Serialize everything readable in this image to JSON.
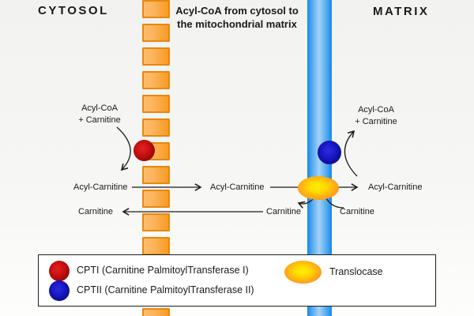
{
  "header": {
    "cytosol_title": "CYTOSOL",
    "matrix_title": "MATRIX",
    "caption_line1": "Acyl-CoA from cytosol to",
    "caption_line2": "the mitochondrial matrix"
  },
  "cytosol_side": {
    "substrates_line1": "Acyl-CoA",
    "substrates_line2": "+ Carnitine",
    "acyl_carnitine": "Acyl-Carnitine",
    "carnitine": "Carnitine"
  },
  "intermembrane_space": {
    "acyl_carnitine": "Acyl-Carnitine",
    "carnitine": "Carnitine"
  },
  "matrix_side": {
    "substrates_line1": "Acyl-CoA",
    "substrates_line2": "+ Carnitine",
    "acyl_carnitine": "Acyl-Carnitine",
    "carnitine": "Carnitine"
  },
  "legend": {
    "cpt1_label": "CPTI (Carnitine PalmitoylTransferase I)",
    "cpt2_label": "CPTII (Carnitine PalmitoylTransferase II)",
    "translocase_label": "Translocase"
  },
  "colors": {
    "ink": "#1a1a1a",
    "membrane_orange": "#f89b22",
    "membrane_orange_border": "#e8870e",
    "membrane_blue": "#1689e8",
    "cpt1_red": "#cb1212",
    "cpt2_blue": "#1b1bc8",
    "translocase_orange": "#ff9d1c",
    "translocase_yellow": "#fff200"
  }
}
